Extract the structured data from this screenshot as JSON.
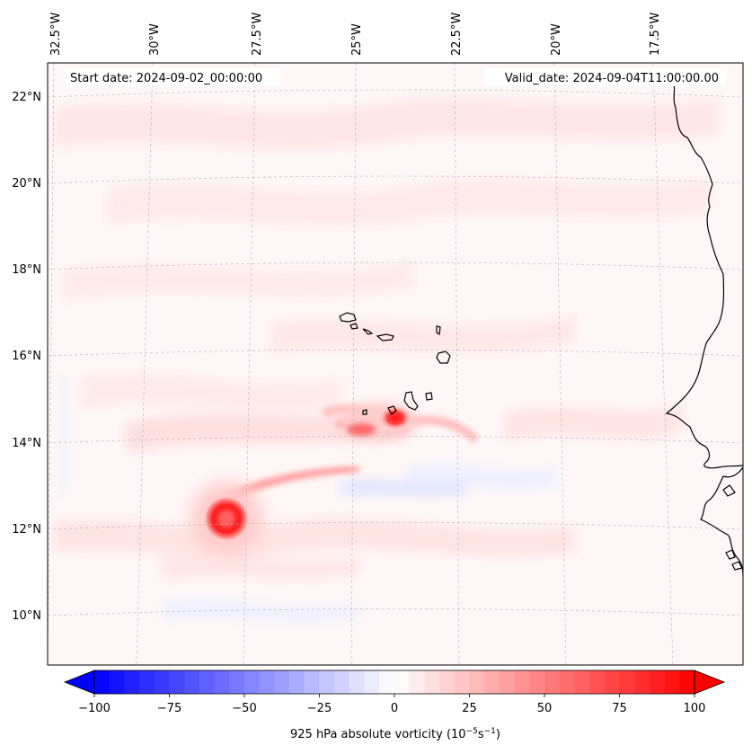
{
  "header": {
    "start_date": "Start date: 2024-09-02_00:00:00",
    "valid_date": "Valid_date: 2024-09-04T11:00:00.00"
  },
  "map": {
    "longitude_labels": [
      "32.5°W",
      "30°W",
      "27.5°W",
      "25°W",
      "22.5°W",
      "20°W",
      "17.5°W"
    ],
    "latitude_labels": [
      "22°N",
      "20°N",
      "18°N",
      "16°N",
      "14°N",
      "12°N",
      "10°N"
    ],
    "features": [
      {
        "name": "Cape Verde islands (Barlavento)"
      },
      {
        "name": "Cape Verde islands (Sotavento)"
      },
      {
        "name": "West African coastline (Mauritania, Senegal, Guinea-Bissau)"
      },
      {
        "name": "vortex near 12.3°N 28°W",
        "vorticity": 100
      },
      {
        "name": "vortex near 14.6°N 24°W",
        "vorticity": 90
      }
    ]
  },
  "colorbar": {
    "label": "925 hPa absolute vorticity (10",
    "label_exp1": "−5",
    "label_mid": "s",
    "label_exp2": "−1",
    "label_end": ")",
    "ticks": [
      "−100",
      "−75",
      "−50",
      "−25",
      "0",
      "25",
      "50",
      "75",
      "100"
    ],
    "tick_values": [
      -100,
      -75,
      -50,
      -25,
      0,
      25,
      50,
      75,
      100
    ],
    "min": -100,
    "max": 100,
    "levels": 40,
    "colormap": "bwr",
    "colors": {
      "low": "#0000ff",
      "mid": "#ffffff",
      "high": "#ff0000"
    }
  }
}
